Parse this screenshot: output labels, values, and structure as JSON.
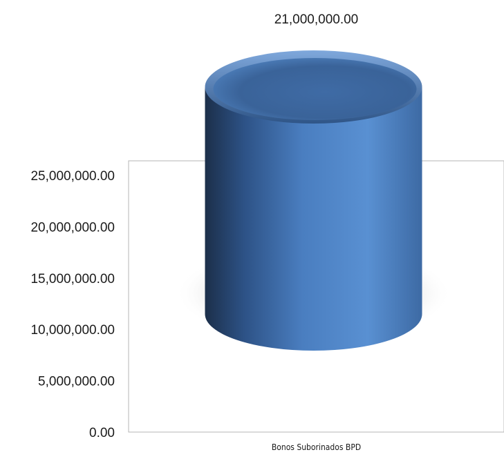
{
  "chart_data": {
    "type": "bar",
    "categories": [
      "Bonos Suborinados BPD"
    ],
    "series": [
      {
        "values": [
          21000000
        ]
      }
    ],
    "data_labels": [
      "21,000,000.00"
    ],
    "y_ticks": [
      {
        "value": 0,
        "label": "0.00"
      },
      {
        "value": 5000000,
        "label": "5,000,000.00"
      },
      {
        "value": 10000000,
        "label": "10,000,000.00"
      },
      {
        "value": 15000000,
        "label": "15,000,000.00"
      },
      {
        "value": 20000000,
        "label": "20,000,000.00"
      },
      {
        "value": 25000000,
        "label": "25,000,000.00"
      }
    ],
    "ylim": [
      0,
      25000000
    ],
    "title": "",
    "xlabel": "",
    "ylabel": "",
    "grid": false,
    "legend": "none",
    "bar_shape": "cylinder",
    "colors": {
      "bar_light": "#5a8fd0",
      "bar_dark": "#1f3f66",
      "bar_top": "#3e6aa4",
      "frame": "#b4b4b4",
      "shadow": "#9a9a9a"
    }
  }
}
